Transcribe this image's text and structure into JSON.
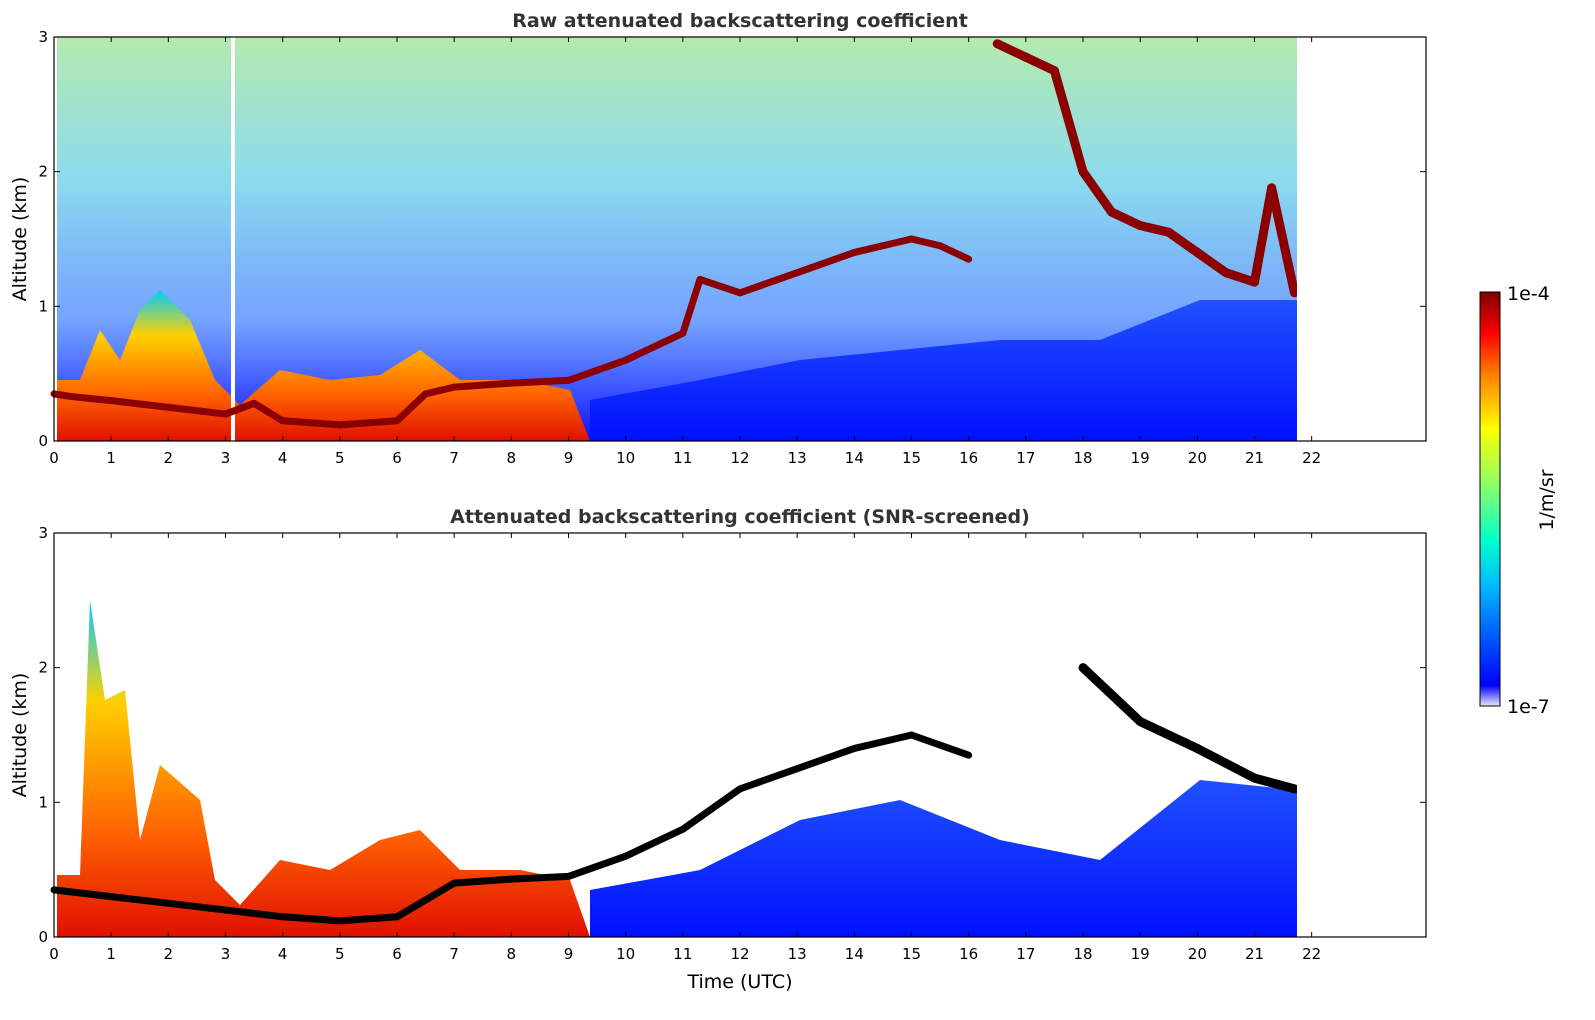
{
  "chart_data": [
    {
      "type": "heatmap",
      "title": "Raw attenuated backscattering coefficient",
      "xlabel": "",
      "ylabel": "Altitude (km)",
      "xlim": [
        0,
        24
      ],
      "ylim": [
        0,
        3
      ],
      "xticks": [
        "0",
        "1",
        "2",
        "3",
        "4",
        "5",
        "6",
        "7",
        "8",
        "9",
        "10",
        "11",
        "12",
        "13",
        "14",
        "15",
        "16",
        "17",
        "18",
        "19",
        "20",
        "21",
        "22"
      ],
      "yticks": [
        "0",
        "1",
        "2",
        "3"
      ],
      "data_end_hour": 21.7,
      "layer_top_km": [
        {
          "x": 0.0,
          "y": 0.35
        },
        {
          "x": 0.3,
          "y": 0.33
        },
        {
          "x": 1.0,
          "y": 0.3
        },
        {
          "x": 2.0,
          "y": 0.25
        },
        {
          "x": 3.0,
          "y": 0.2
        },
        {
          "x": 3.5,
          "y": 0.28
        },
        {
          "x": 4.0,
          "y": 0.15
        },
        {
          "x": 5.0,
          "y": 0.12
        },
        {
          "x": 6.0,
          "y": 0.15
        },
        {
          "x": 6.5,
          "y": 0.35
        },
        {
          "x": 7.0,
          "y": 0.4
        },
        {
          "x": 8.0,
          "y": 0.43
        },
        {
          "x": 9.0,
          "y": 0.45
        },
        {
          "x": 10.0,
          "y": 0.6
        },
        {
          "x": 11.0,
          "y": 0.8
        },
        {
          "x": 11.3,
          "y": 1.2
        },
        {
          "x": 12.0,
          "y": 1.1
        },
        {
          "x": 13.0,
          "y": 1.25
        },
        {
          "x": 14.0,
          "y": 1.4
        },
        {
          "x": 15.0,
          "y": 1.5
        },
        {
          "x": 15.5,
          "y": 1.45
        },
        {
          "x": 16.0,
          "y": 1.35
        }
      ],
      "cloud_top_km": [
        {
          "x": 16.5,
          "y": 2.95
        },
        {
          "x": 17.0,
          "y": 2.85
        },
        {
          "x": 17.5,
          "y": 2.75
        },
        {
          "x": 18.0,
          "y": 2.0
        },
        {
          "x": 18.5,
          "y": 1.7
        },
        {
          "x": 19.0,
          "y": 1.6
        },
        {
          "x": 19.5,
          "y": 1.55
        },
        {
          "x": 20.0,
          "y": 1.4
        },
        {
          "x": 20.5,
          "y": 1.25
        },
        {
          "x": 21.0,
          "y": 1.18
        },
        {
          "x": 21.3,
          "y": 1.88
        },
        {
          "x": 21.7,
          "y": 1.1
        }
      ]
    },
    {
      "type": "heatmap",
      "title": "Attenuated backscattering coefficient (SNR-screened)",
      "xlabel": "Time (UTC)",
      "ylabel": "Altitude (km)",
      "xlim": [
        0,
        24
      ],
      "ylim": [
        0,
        3
      ],
      "xticks": [
        "0",
        "1",
        "2",
        "3",
        "4",
        "5",
        "6",
        "7",
        "8",
        "9",
        "10",
        "11",
        "12",
        "13",
        "14",
        "15",
        "16",
        "17",
        "18",
        "19",
        "20",
        "21",
        "22"
      ],
      "yticks": [
        "0",
        "1",
        "2",
        "3"
      ],
      "data_end_hour": 21.7,
      "layer_top_km": [
        {
          "x": 0.0,
          "y": 0.35
        },
        {
          "x": 1.0,
          "y": 0.3
        },
        {
          "x": 2.0,
          "y": 0.25
        },
        {
          "x": 3.0,
          "y": 0.2
        },
        {
          "x": 4.0,
          "y": 0.15
        },
        {
          "x": 5.0,
          "y": 0.12
        },
        {
          "x": 6.0,
          "y": 0.15
        },
        {
          "x": 7.0,
          "y": 0.4
        },
        {
          "x": 8.0,
          "y": 0.43
        },
        {
          "x": 9.0,
          "y": 0.45
        },
        {
          "x": 10.0,
          "y": 0.6
        },
        {
          "x": 11.0,
          "y": 0.8
        },
        {
          "x": 12.0,
          "y": 1.1
        },
        {
          "x": 13.0,
          "y": 1.25
        },
        {
          "x": 14.0,
          "y": 1.4
        },
        {
          "x": 15.0,
          "y": 1.5
        },
        {
          "x": 16.0,
          "y": 1.35
        }
      ],
      "cloud_top_km": [
        {
          "x": 18.0,
          "y": 2.0
        },
        {
          "x": 19.0,
          "y": 1.6
        },
        {
          "x": 20.0,
          "y": 1.4
        },
        {
          "x": 21.0,
          "y": 1.18
        },
        {
          "x": 21.7,
          "y": 1.1
        }
      ]
    }
  ],
  "colorbar": {
    "label": "1/m/sr",
    "max_label": "1e-4",
    "min_label": "1e-7",
    "colormap": "jet",
    "colors": [
      "#e8e8f8",
      "#0000ff",
      "#00bfff",
      "#00ffcc",
      "#9cff5c",
      "#ffff00",
      "#ff8000",
      "#ff0000",
      "#800000"
    ]
  }
}
